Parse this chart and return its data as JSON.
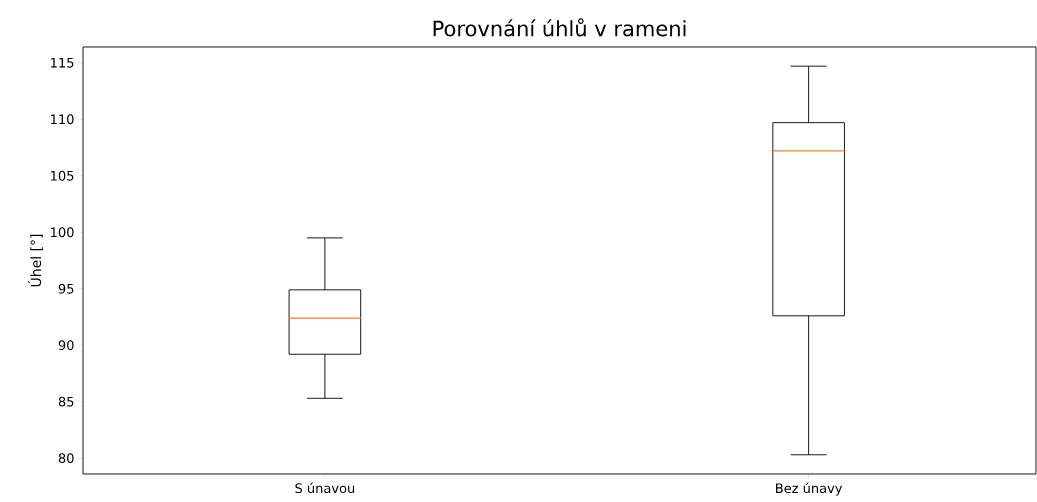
{
  "chart_data": {
    "type": "box",
    "title": "Porovnání úhlů v rameni",
    "ylabel": "Úhel [°]",
    "categories": [
      "S únavou",
      "Bez únavy"
    ],
    "boxes": [
      {
        "low": 85.3,
        "q1": 89.2,
        "median": 92.4,
        "q3": 94.9,
        "high": 99.5
      },
      {
        "low": 80.3,
        "q1": 92.6,
        "median": 107.2,
        "q3": 109.7,
        "high": 114.7
      }
    ],
    "ylim": [
      78.6,
      116.4
    ],
    "yticks": [
      80,
      85,
      90,
      95,
      100,
      105,
      110,
      115
    ],
    "grid": false
  }
}
